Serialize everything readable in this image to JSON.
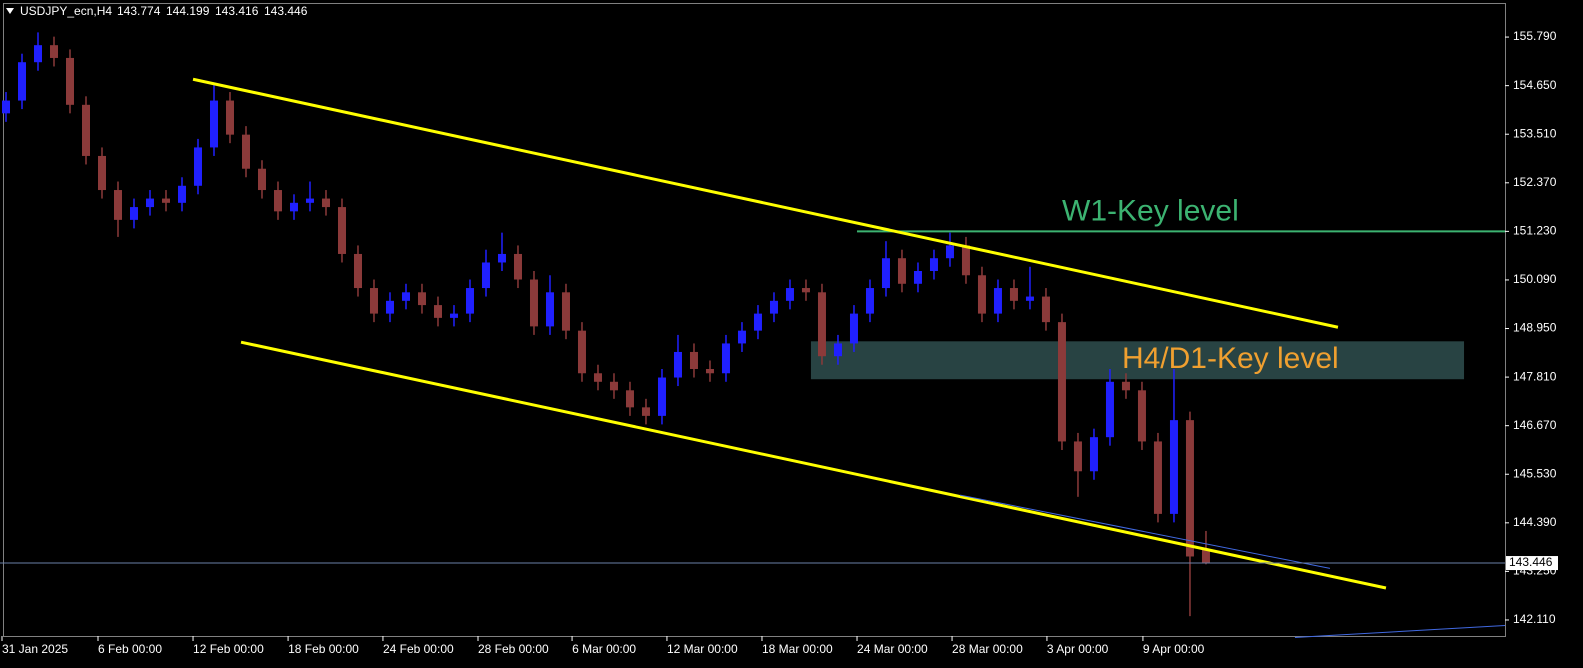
{
  "chart_data": {
    "type": "candlestick",
    "title": "USDJPY_ecn,H4",
    "x": [
      0,
      1,
      2,
      3,
      4,
      5,
      6,
      7,
      8,
      9,
      10,
      11,
      12,
      13,
      14,
      15,
      16,
      17,
      18,
      19,
      20,
      21,
      22,
      23,
      24,
      25,
      26,
      27,
      28,
      29,
      30,
      31,
      32,
      33,
      34,
      35,
      36,
      37,
      38,
      39,
      40,
      41,
      42,
      43,
      44,
      45,
      46,
      47,
      48,
      49,
      50,
      51,
      52,
      53,
      54,
      55,
      56,
      57,
      58,
      59,
      60,
      61,
      62,
      63,
      64,
      65,
      66,
      67,
      68,
      69,
      70,
      71,
      72,
      73,
      74,
      75
    ],
    "open": [
      154.0,
      154.3,
      155.2,
      155.6,
      155.3,
      154.2,
      153.0,
      152.2,
      151.5,
      151.8,
      152.0,
      151.9,
      152.3,
      153.2,
      154.3,
      153.5,
      152.7,
      152.2,
      151.7,
      151.9,
      152.0,
      151.8,
      150.7,
      149.9,
      149.3,
      149.6,
      149.8,
      149.5,
      149.2,
      149.3,
      149.9,
      150.5,
      150.7,
      150.1,
      149.0,
      149.8,
      148.9,
      147.9,
      147.7,
      147.5,
      147.1,
      146.9,
      147.8,
      148.4,
      148.0,
      147.9,
      148.6,
      148.9,
      149.3,
      149.6,
      149.9,
      149.8,
      148.3,
      148.6,
      149.3,
      149.9,
      150.6,
      150.0,
      150.3,
      150.6,
      150.9,
      150.2,
      149.3,
      149.9,
      149.6,
      149.7,
      149.1,
      146.3,
      145.6,
      146.4,
      147.7,
      147.5,
      146.3,
      144.6,
      146.8,
      143.774
    ],
    "high": [
      154.5,
      155.4,
      155.9,
      155.8,
      155.5,
      154.4,
      153.2,
      152.4,
      152.0,
      152.2,
      152.2,
      152.5,
      153.4,
      154.7,
      154.5,
      153.7,
      152.9,
      152.4,
      152.1,
      152.4,
      152.2,
      152.0,
      150.9,
      150.1,
      149.8,
      150.0,
      150.0,
      149.7,
      149.5,
      150.1,
      150.8,
      151.2,
      150.9,
      150.3,
      150.2,
      150.0,
      149.1,
      148.1,
      147.9,
      147.7,
      147.3,
      148.0,
      148.8,
      148.6,
      148.2,
      148.8,
      149.1,
      149.5,
      149.8,
      150.1,
      150.1,
      150.0,
      148.8,
      149.5,
      150.1,
      151.0,
      150.8,
      150.5,
      150.8,
      151.2,
      151.1,
      150.4,
      150.1,
      150.1,
      150.4,
      149.9,
      149.3,
      146.5,
      146.6,
      148.0,
      147.9,
      147.7,
      146.5,
      148.0,
      147.0,
      144.199
    ],
    "low": [
      153.8,
      154.1,
      155.0,
      155.1,
      154.0,
      152.8,
      152.0,
      151.1,
      151.3,
      151.6,
      151.7,
      151.7,
      152.1,
      153.0,
      153.3,
      152.5,
      152.0,
      151.5,
      151.5,
      151.7,
      151.6,
      150.5,
      149.7,
      149.1,
      149.1,
      149.4,
      149.3,
      149.0,
      149.0,
      149.1,
      149.7,
      150.3,
      149.9,
      148.8,
      148.8,
      148.7,
      147.7,
      147.5,
      147.3,
      146.9,
      146.7,
      146.7,
      147.6,
      147.8,
      147.7,
      147.7,
      148.4,
      148.7,
      149.1,
      149.4,
      149.6,
      148.1,
      148.1,
      148.4,
      149.1,
      149.7,
      149.8,
      149.8,
      150.1,
      150.4,
      150.0,
      149.1,
      149.1,
      149.4,
      149.4,
      148.9,
      146.1,
      145.0,
      145.4,
      146.2,
      147.3,
      146.1,
      144.4,
      144.4,
      142.2,
      143.416
    ],
    "close": [
      154.3,
      155.2,
      155.6,
      155.3,
      154.2,
      153.0,
      152.2,
      151.5,
      151.8,
      152.0,
      151.9,
      152.3,
      153.2,
      154.3,
      153.5,
      152.7,
      152.2,
      151.7,
      151.9,
      152.0,
      151.8,
      150.7,
      149.9,
      149.3,
      149.6,
      149.8,
      149.5,
      149.2,
      149.3,
      149.9,
      150.5,
      150.7,
      150.1,
      149.0,
      149.8,
      148.9,
      147.9,
      147.7,
      147.5,
      147.1,
      146.9,
      147.8,
      148.4,
      148.0,
      147.9,
      148.6,
      148.9,
      149.3,
      149.6,
      149.9,
      149.8,
      148.3,
      148.6,
      149.3,
      149.9,
      150.6,
      150.0,
      150.3,
      150.6,
      150.9,
      150.2,
      149.3,
      149.9,
      149.6,
      149.7,
      149.1,
      146.3,
      145.6,
      146.4,
      147.7,
      147.5,
      146.3,
      144.6,
      146.8,
      143.6,
      143.446
    ],
    "up_color": "#2020ff",
    "down_color": "#8b3a3a",
    "xlim": [
      -0.375,
      93.69
    ],
    "ylim": [
      141.64,
      156.66
    ],
    "xticks": [
      {
        "value": -0.25,
        "label": "31 Jan 2025"
      },
      {
        "value": 5.75,
        "label": "6 Feb 00:00"
      },
      {
        "value": 11.69,
        "label": "12 Feb 00:00"
      },
      {
        "value": 17.63,
        "label": "18 Feb 00:00"
      },
      {
        "value": 23.56,
        "label": "24 Feb 00:00"
      },
      {
        "value": 29.5,
        "label": "28 Feb 00:00"
      },
      {
        "value": 35.38,
        "label": "6 Mar 00:00"
      },
      {
        "value": 41.31,
        "label": "12 Mar 00:00"
      },
      {
        "value": 47.25,
        "label": "18 Mar 00:00"
      },
      {
        "value": 53.19,
        "label": "24 Mar 00:00"
      },
      {
        "value": 59.13,
        "label": "28 Mar 00:00"
      },
      {
        "value": 65.06,
        "label": "3 Apr 00:00"
      },
      {
        "value": 71.06,
        "label": "9 Apr 00:00"
      }
    ],
    "yticks": [
      {
        "value": 155.79,
        "label": "155.790"
      },
      {
        "value": 154.65,
        "label": "154.650"
      },
      {
        "value": 153.51,
        "label": "153.510"
      },
      {
        "value": 152.37,
        "label": "152.370"
      },
      {
        "value": 151.23,
        "label": "151.230"
      },
      {
        "value": 150.09,
        "label": "150.090"
      },
      {
        "value": 148.95,
        "label": "148.950"
      },
      {
        "value": 147.81,
        "label": "147.810"
      },
      {
        "value": 146.67,
        "label": "146.670"
      },
      {
        "value": 145.53,
        "label": "145.530"
      },
      {
        "value": 144.39,
        "label": "144.390"
      },
      {
        "value": 143.25,
        "label": "143.250"
      },
      {
        "value": 142.11,
        "label": "142.110"
      }
    ],
    "current_price": 143.446,
    "trendlines": [
      {
        "x": [
          11.69,
          83.25
        ],
        "y": [
          154.8,
          148.98
        ],
        "color": "#ffff00"
      },
      {
        "x": [
          14.69,
          86.25
        ],
        "y": [
          148.63,
          142.86
        ],
        "color": "#ffff00"
      },
      {
        "x": [
          59.63,
          82.75
        ],
        "y": [
          145.04,
          143.32
        ],
        "color": "#4169e1"
      },
      {
        "x": [
          80.56,
          93.69
        ],
        "y": [
          141.7,
          141.98
        ],
        "color": "#4169e1"
      }
    ],
    "levels": [
      {
        "name": "W1-Key level",
        "y": 151.23,
        "x": [
          53.19,
          93.69
        ],
        "color": "#3cb371"
      }
    ],
    "zones": [
      {
        "name": "H4/D1-Key level",
        "x": [
          50.31,
          91.13
        ],
        "y": [
          147.76,
          148.65
        ],
        "color": "#2f4f4f",
        "text_color": "#f0a030"
      }
    ]
  }
}
